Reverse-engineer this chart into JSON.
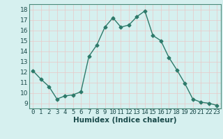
{
  "xlabel": "Humidex (Indice chaleur)",
  "x": [
    0,
    1,
    2,
    3,
    4,
    5,
    6,
    7,
    8,
    9,
    10,
    11,
    12,
    13,
    14,
    15,
    16,
    17,
    18,
    19,
    20,
    21,
    22,
    23
  ],
  "y": [
    12.1,
    11.3,
    10.6,
    9.4,
    9.7,
    9.8,
    10.1,
    13.5,
    14.6,
    16.3,
    17.2,
    16.3,
    16.5,
    17.3,
    17.85,
    15.5,
    15.0,
    13.4,
    12.2,
    10.9,
    9.4,
    9.1,
    9.0,
    8.8
  ],
  "line_color": "#2d7a6a",
  "marker": "D",
  "marker_size": 2.5,
  "bg_color": "#d6f0ef",
  "grid_color": "#c4d8d6",
  "grid_color_red": "#e8c8c8",
  "xlim": [
    -0.5,
    23.5
  ],
  "ylim": [
    8.5,
    18.5
  ],
  "yticks": [
    9,
    10,
    11,
    12,
    13,
    14,
    15,
    16,
    17,
    18
  ],
  "xticks": [
    0,
    1,
    2,
    3,
    4,
    5,
    6,
    7,
    8,
    9,
    10,
    11,
    12,
    13,
    14,
    15,
    16,
    17,
    18,
    19,
    20,
    21,
    22,
    23
  ],
  "tick_fontsize": 6.5,
  "xlabel_fontsize": 7.5
}
